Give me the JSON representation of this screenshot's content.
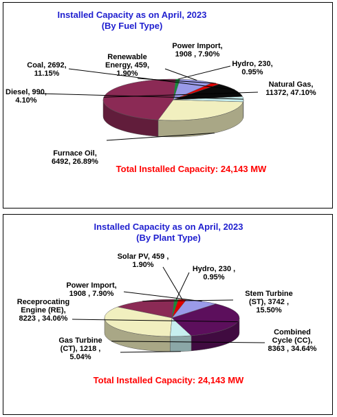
{
  "chart_data": [
    {
      "type": "pie",
      "title": "Installed Capacity as on April, 2023",
      "subtitle": "(By Fuel Type)",
      "total_text": "Total Installed Capacity: 24,143 MW",
      "slices": [
        {
          "name": "Natural Gas",
          "value": 11372,
          "percent": "47.10%",
          "color": "#8b2a55",
          "label": [
            "Natural Gas,",
            "11372, 47.10%"
          ]
        },
        {
          "name": "Furnace Oil",
          "value": 6492,
          "percent": "26.89%",
          "color": "#f1efbf",
          "label": [
            "Furnace Oil,",
            "6492, 26.89%"
          ]
        },
        {
          "name": "Diesel",
          "value": 990,
          "percent": "4.10%",
          "color": "#c7efef",
          "label": [
            "Diesel, 990,",
            "4.10%"
          ]
        },
        {
          "name": "Coal",
          "value": 2692,
          "percent": "11.15%",
          "color": "#0a0a0a",
          "label": [
            "Coal, 2692,",
            "11.15%"
          ]
        },
        {
          "name": "Renewable Energy",
          "value": 459,
          "percent": "1.90%",
          "color": "#e00000",
          "label": [
            "Renewable",
            "Energy, 459,",
            "1.90%"
          ]
        },
        {
          "name": "Power Import",
          "value": 1908,
          "percent": "7.90%",
          "color": "#9a9ae8",
          "label": [
            "Power Import,",
            "1908 , 7.90%"
          ]
        },
        {
          "name": "Hydro",
          "value": 230,
          "percent": "0.95%",
          "color": "#1a8a3a",
          "label": [
            "Hydro, 230,",
            "0.95%"
          ]
        }
      ]
    },
    {
      "type": "pie",
      "title": "Installed Capacity as on April, 2023",
      "subtitle": "(By Plant Type)",
      "total_text": "Total Installed Capacity: 24,143 MW",
      "slices": [
        {
          "name": "Stem Turbine (ST)",
          "value": 3742,
          "percent": "15.50%",
          "color": "#8b2a55",
          "label": [
            "Stem Turbine",
            "(ST), 3742 ,",
            "15.50%"
          ]
        },
        {
          "name": "Combined Cycle (CC)",
          "value": 8363,
          "percent": "34.64%",
          "color": "#f1efbf",
          "label": [
            "Combined",
            "Cycle (CC),",
            "8363 , 34.64%"
          ]
        },
        {
          "name": "Gas Turbine (CT)",
          "value": 1218,
          "percent": "5.04%",
          "color": "#c7efef",
          "label": [
            "Gas Turbine",
            "(CT), 1218 ,",
            "5.04%"
          ]
        },
        {
          "name": "Receprocating Engine (RE)",
          "value": 8223,
          "percent": "34.06%",
          "color": "#5c0f5c",
          "label": [
            "Receprocating",
            "Engine (RE),",
            "8223 , 34.06%"
          ]
        },
        {
          "name": "Power Import",
          "value": 1908,
          "percent": "7.90%",
          "color": "#9a9ae8",
          "label": [
            "Power Import,",
            "1908 , 7.90%"
          ]
        },
        {
          "name": "Solar PV",
          "value": 459,
          "percent": "1.90%",
          "color": "#e00000",
          "label": [
            "Solar PV, 459 ,",
            "1.90%"
          ]
        },
        {
          "name": "Hydro",
          "value": 230,
          "percent": "0.95%",
          "color": "#1a8a3a",
          "label": [
            "Hydro, 230 ,",
            "0.95%"
          ]
        }
      ]
    }
  ]
}
